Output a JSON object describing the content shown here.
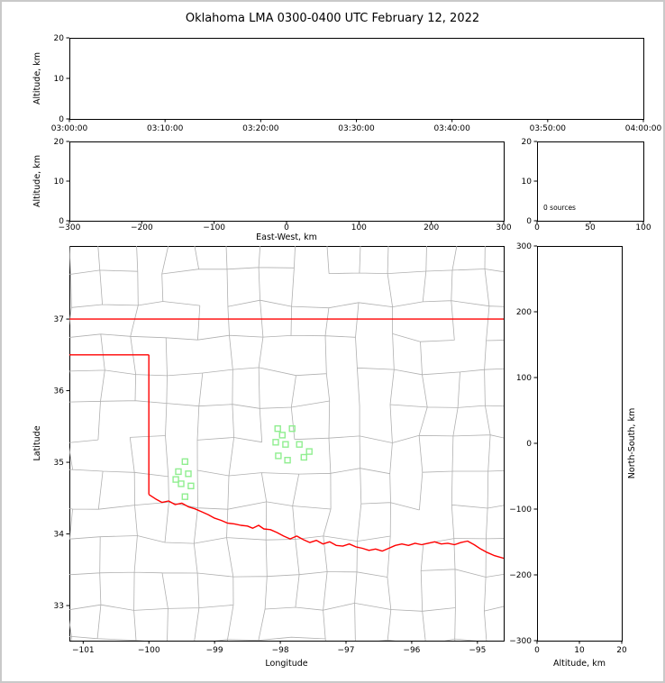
{
  "title": "Oklahoma LMA 0300-0400 UTC February 12, 2022",
  "colors": {
    "state_border": "#ff0000",
    "county_line": "#b0b0b0",
    "station": "#90ee90",
    "axis": "#000000",
    "background": "#ffffff",
    "frame_border": "#c9c9c9"
  },
  "map": {
    "county_grid": {
      "lon_step": 0.49,
      "lat_step": 0.47,
      "jitter_lon": 0.07,
      "jitter_lat": 0.06,
      "skip_prob": 0.13,
      "seed": 11
    }
  },
  "chart_data": [
    {
      "id": "time-height",
      "type": "scatter",
      "xlabel": "",
      "ylabel": "Altitude, km",
      "xlim": [
        0,
        6
      ],
      "xticks": [
        0,
        1,
        2,
        3,
        4,
        5,
        6
      ],
      "xtick_labels": [
        "03:00:00",
        "03:10:00",
        "03:20:00",
        "03:30:00",
        "03:40:00",
        "03:50:00",
        "04:00:00"
      ],
      "ylim": [
        0,
        20
      ],
      "yticks": [
        0,
        10,
        20
      ],
      "points": []
    },
    {
      "id": "ew-height",
      "type": "scatter",
      "xlabel": "East-West, km",
      "ylabel": "Altitude, km",
      "xlim": [
        -300,
        300
      ],
      "xticks": [
        -300,
        -200,
        -100,
        0,
        100,
        200,
        300
      ],
      "ylim": [
        0,
        20
      ],
      "yticks": [
        0,
        10,
        20
      ],
      "points": []
    },
    {
      "id": "alt-histogram",
      "type": "histogram",
      "xlim": [
        0,
        100
      ],
      "xticks": [
        0,
        50,
        100
      ],
      "ylim": [
        0,
        20
      ],
      "yticks": [
        0,
        10,
        20
      ],
      "annotation": "0 sources",
      "points": []
    },
    {
      "id": "plan-view",
      "type": "map-scatter",
      "xlabel": "Longitude",
      "ylabel": "Latitude",
      "xlim": [
        -101.21,
        -94.6
      ],
      "xticks": [
        -101,
        -100,
        -99,
        -98,
        -97,
        -96,
        -95
      ],
      "ylim": [
        32.51,
        38.02
      ],
      "yticks": [
        33,
        34,
        35,
        36,
        37
      ],
      "stations": [
        [
          -98.04,
          35.47
        ],
        [
          -97.82,
          35.47
        ],
        [
          -97.97,
          35.38
        ],
        [
          -98.07,
          35.28
        ],
        [
          -97.92,
          35.25
        ],
        [
          -97.71,
          35.25
        ],
        [
          -98.03,
          35.09
        ],
        [
          -97.89,
          35.03
        ],
        [
          -97.56,
          35.15
        ],
        [
          -97.64,
          35.07
        ],
        [
          -99.45,
          35.01
        ],
        [
          -99.55,
          34.87
        ],
        [
          -99.4,
          34.84
        ],
        [
          -99.59,
          34.76
        ],
        [
          -99.51,
          34.7
        ],
        [
          -99.36,
          34.67
        ],
        [
          -99.45,
          34.52
        ]
      ],
      "state_border": {
        "north": [
          [
            -101.21,
            37.0
          ],
          [
            -94.6,
            37.0
          ]
        ],
        "panhandle_south": [
          [
            -101.21,
            36.5
          ],
          [
            -100.0,
            36.5
          ]
        ],
        "meridian_100": [
          [
            -100.0,
            36.5
          ],
          [
            -100.0,
            34.55
          ]
        ],
        "red_river": [
          [
            -100.0,
            34.55
          ],
          [
            -99.9,
            34.49
          ],
          [
            -99.8,
            34.44
          ],
          [
            -99.7,
            34.46
          ],
          [
            -99.6,
            34.41
          ],
          [
            -99.5,
            34.43
          ],
          [
            -99.4,
            34.38
          ],
          [
            -99.3,
            34.35
          ],
          [
            -99.2,
            34.31
          ],
          [
            -99.1,
            34.27
          ],
          [
            -99.0,
            34.22
          ],
          [
            -98.9,
            34.19
          ],
          [
            -98.8,
            34.15
          ],
          [
            -98.7,
            34.14
          ],
          [
            -98.6,
            34.12
          ],
          [
            -98.5,
            34.11
          ],
          [
            -98.42,
            34.08
          ],
          [
            -98.33,
            34.12
          ],
          [
            -98.25,
            34.07
          ],
          [
            -98.15,
            34.06
          ],
          [
            -98.05,
            34.02
          ],
          [
            -97.95,
            33.97
          ],
          [
            -97.85,
            33.93
          ],
          [
            -97.75,
            33.97
          ],
          [
            -97.65,
            33.92
          ],
          [
            -97.55,
            33.88
          ],
          [
            -97.45,
            33.91
          ],
          [
            -97.35,
            33.86
          ],
          [
            -97.25,
            33.89
          ],
          [
            -97.15,
            33.84
          ],
          [
            -97.05,
            33.83
          ],
          [
            -96.95,
            33.86
          ],
          [
            -96.85,
            33.82
          ],
          [
            -96.75,
            33.8
          ],
          [
            -96.65,
            33.77
          ],
          [
            -96.55,
            33.79
          ],
          [
            -96.45,
            33.76
          ],
          [
            -96.35,
            33.8
          ],
          [
            -96.25,
            33.84
          ],
          [
            -96.15,
            33.86
          ],
          [
            -96.05,
            33.84
          ],
          [
            -95.95,
            33.87
          ],
          [
            -95.85,
            33.85
          ],
          [
            -95.75,
            33.87
          ],
          [
            -95.65,
            33.89
          ],
          [
            -95.55,
            33.86
          ],
          [
            -95.45,
            33.87
          ],
          [
            -95.35,
            33.85
          ],
          [
            -95.25,
            33.88
          ],
          [
            -95.15,
            33.9
          ],
          [
            -95.05,
            33.85
          ],
          [
            -94.95,
            33.79
          ],
          [
            -94.85,
            33.74
          ],
          [
            -94.75,
            33.7
          ],
          [
            -94.6,
            33.66
          ]
        ]
      }
    },
    {
      "id": "ns-height",
      "type": "scatter",
      "xlabel": "Altitude, km",
      "ylabel": "North-South, km",
      "ylabel_side": "right",
      "xlim": [
        0,
        20
      ],
      "xticks": [
        0,
        10,
        20
      ],
      "ylim": [
        -300,
        300
      ],
      "yticks": [
        -300,
        -200,
        -100,
        0,
        100,
        200,
        300
      ],
      "points": []
    }
  ]
}
